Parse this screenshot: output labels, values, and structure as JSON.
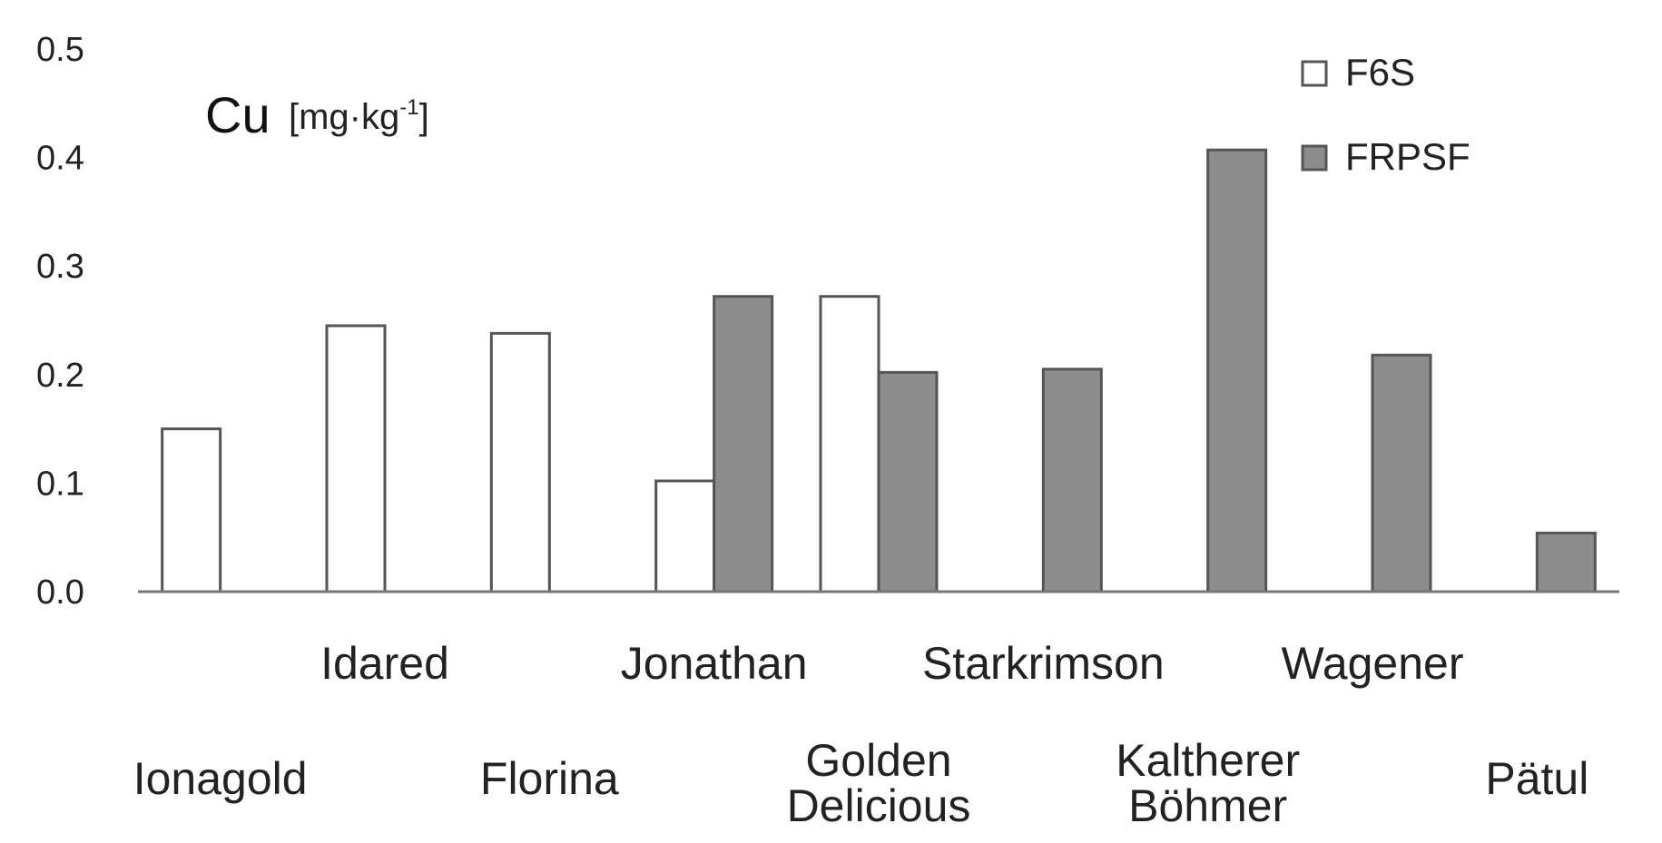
{
  "chart_data": {
    "type": "bar",
    "ylabel": {
      "main": "Cu",
      "unit_prefix": "[mg·kg",
      "unit_sup": "-1",
      "unit_suffix": "]"
    },
    "ylim": [
      0,
      0.5
    ],
    "yticks": [
      "0.0",
      "0.1",
      "0.2",
      "0.3",
      "0.4",
      "0.5"
    ],
    "categories": [
      "Ionagold",
      "Idared",
      "Florina",
      "Jonathan",
      "Golden\nDelicious",
      "Starkrimson",
      "Kaltherer\nBöhmer",
      "Wagener",
      "Pätul"
    ],
    "series": [
      {
        "name": "F6S",
        "color": "#ffffff",
        "values": [
          0.15,
          0.245,
          0.238,
          0.102,
          0.272,
          null,
          null,
          null,
          null
        ]
      },
      {
        "name": "FRPSF",
        "color": "#8c8c8c",
        "values": [
          null,
          null,
          null,
          0.272,
          0.202,
          0.205,
          0.407,
          0.218,
          0.054
        ]
      }
    ],
    "legend": "top-right",
    "grid": false
  }
}
